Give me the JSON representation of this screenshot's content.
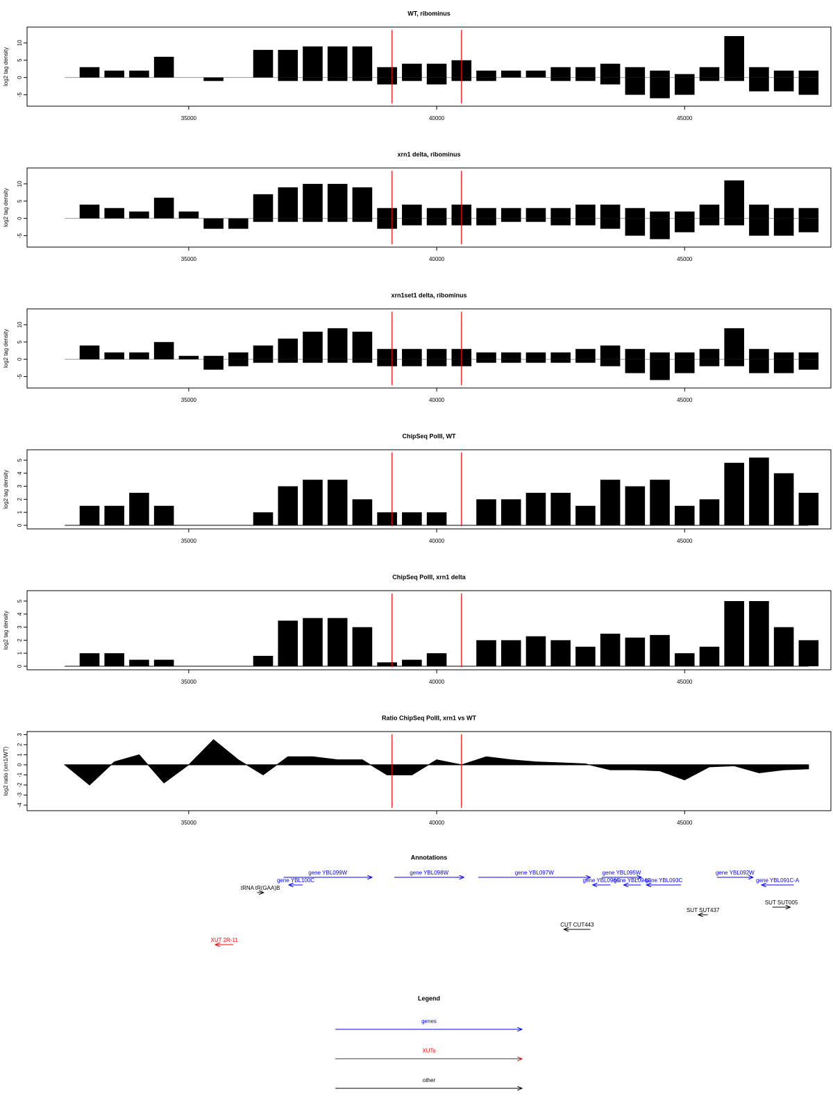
{
  "chart_data": [
    {
      "type": "bar",
      "title": "WT, ribominus",
      "ylabel": "log2 tag density",
      "xlim": [
        31740,
        47950
      ],
      "xticks": [
        35000,
        40000,
        45000
      ],
      "ylim": [
        -8.3,
        14.6
      ],
      "yticks": [
        -5,
        0,
        5,
        10
      ],
      "color": "#000000",
      "baseline_color": "#999999",
      "markers": [
        39100,
        40500
      ],
      "marker_color": "#ff0000",
      "x": [
        32500,
        33000,
        33500,
        34000,
        34500,
        35000,
        35500,
        36000,
        36500,
        37000,
        37500,
        38000,
        38500,
        39000,
        39500,
        40000,
        40500,
        41000,
        41500,
        42000,
        42500,
        43000,
        43500,
        44000,
        44500,
        45000,
        45500,
        46000,
        46500,
        47000,
        47500
      ],
      "values": [
        0,
        3,
        2,
        2,
        6,
        0,
        0,
        0,
        8,
        8,
        9,
        9,
        9,
        3,
        4,
        4,
        5,
        2,
        2,
        2,
        3,
        3,
        4,
        3,
        2,
        1,
        3,
        12,
        3,
        2,
        2
      ],
      "values_minus": [
        0,
        0,
        0,
        0,
        0,
        0,
        -1,
        0,
        0,
        -1,
        -1,
        -1,
        -1,
        -2,
        -1,
        -2,
        -1,
        -1,
        0,
        0,
        -1,
        -1,
        -2,
        -5,
        -6,
        -5,
        -1,
        -1,
        -4,
        -4,
        -5
      ]
    },
    {
      "type": "bar",
      "title": "xrn1 delta, ribominus",
      "ylabel": "log2 tag density",
      "xlim": [
        31740,
        47950
      ],
      "xticks": [
        35000,
        40000,
        45000
      ],
      "ylim": [
        -8.3,
        14.6
      ],
      "yticks": [
        -5,
        0,
        5,
        10
      ],
      "color": "#000000",
      "baseline_color": "#999999",
      "markers": [
        39100,
        40500
      ],
      "marker_color": "#ff0000",
      "x": [
        32500,
        33000,
        33500,
        34000,
        34500,
        35000,
        35500,
        36000,
        36500,
        37000,
        37500,
        38000,
        38500,
        39000,
        39500,
        40000,
        40500,
        41000,
        41500,
        42000,
        42500,
        43000,
        43500,
        44000,
        44500,
        45000,
        45500,
        46000,
        46500,
        47000,
        47500
      ],
      "values": [
        0,
        4,
        3,
        2,
        6,
        2,
        0,
        0,
        7,
        9,
        10,
        10,
        9,
        3,
        4,
        3,
        4,
        3,
        3,
        3,
        3,
        4,
        4,
        3,
        2,
        2,
        4,
        11,
        4,
        3,
        3
      ],
      "values_minus": [
        0,
        0,
        0,
        0,
        0,
        0,
        -3,
        -3,
        -1,
        -1,
        -1,
        -1,
        -1,
        -3,
        -2,
        -2,
        -2,
        -2,
        -1,
        -1,
        -2,
        -2,
        -3,
        -5,
        -6,
        -4,
        -2,
        -2,
        -5,
        -5,
        -4
      ]
    },
    {
      "type": "bar",
      "title": "xrn1set1 delta, ribominus",
      "ylabel": "log2 tag density",
      "xlim": [
        31740,
        47950
      ],
      "xticks": [
        35000,
        40000,
        45000
      ],
      "ylim": [
        -8.3,
        14.6
      ],
      "yticks": [
        -5,
        0,
        5,
        10
      ],
      "color": "#000000",
      "baseline_color": "#999999",
      "markers": [
        39100,
        40500
      ],
      "marker_color": "#ff0000",
      "x": [
        32500,
        33000,
        33500,
        34000,
        34500,
        35000,
        35500,
        36000,
        36500,
        37000,
        37500,
        38000,
        38500,
        39000,
        39500,
        40000,
        40500,
        41000,
        41500,
        42000,
        42500,
        43000,
        43500,
        44000,
        44500,
        45000,
        45500,
        46000,
        46500,
        47000,
        47500
      ],
      "values": [
        0,
        4,
        2,
        2,
        5,
        1,
        1,
        2,
        4,
        6,
        8,
        9,
        8,
        3,
        3,
        3,
        3,
        2,
        2,
        2,
        2,
        3,
        4,
        3,
        2,
        2,
        3,
        9,
        3,
        2,
        2
      ],
      "values_minus": [
        0,
        0,
        0,
        0,
        0,
        0,
        -3,
        -2,
        -1,
        -1,
        -1,
        -1,
        -1,
        -2,
        -2,
        -2,
        -2,
        -1,
        -1,
        -1,
        -1,
        -1,
        -2,
        -4,
        -6,
        -4,
        -2,
        -2,
        -4,
        -4,
        -3
      ]
    },
    {
      "type": "bar",
      "title": "ChipSeq PolII, WT",
      "ylabel": "log2 tag density",
      "xlim": [
        31740,
        47950
      ],
      "xticks": [
        35000,
        40000,
        45000
      ],
      "ylim": [
        -0.27,
        5.8
      ],
      "yticks": [
        0,
        1,
        2,
        3,
        4,
        5
      ],
      "color": "#000000",
      "baseline_color": "#000000",
      "markers": [
        39100,
        40500
      ],
      "marker_color": "#ff0000",
      "x": [
        32500,
        33000,
        33500,
        34000,
        34500,
        35000,
        35500,
        36000,
        36500,
        37000,
        37500,
        38000,
        38500,
        39000,
        39500,
        40000,
        40500,
        41000,
        41500,
        42000,
        42500,
        43000,
        43500,
        44000,
        44500,
        45000,
        45500,
        46000,
        46500,
        47000,
        47500
      ],
      "values": [
        0,
        1.5,
        1.5,
        2.5,
        1.5,
        0,
        0,
        0,
        1,
        3,
        3.5,
        3.5,
        2,
        1,
        1,
        1,
        0,
        2,
        2,
        2.5,
        2.5,
        1.5,
        3.5,
        3,
        3.5,
        1.5,
        2,
        4.8,
        5.2,
        4,
        2.5
      ]
    },
    {
      "type": "bar",
      "title": "ChipSeq PolII, xrn1 delta",
      "ylabel": "log2 tag density",
      "xlim": [
        31740,
        47950
      ],
      "xticks": [
        35000,
        40000,
        45000
      ],
      "ylim": [
        -0.27,
        5.8
      ],
      "yticks": [
        0,
        1,
        2,
        3,
        4,
        5
      ],
      "color": "#000000",
      "baseline_color": "#000000",
      "markers": [
        39100,
        40500
      ],
      "marker_color": "#ff0000",
      "x": [
        32500,
        33000,
        33500,
        34000,
        34500,
        35000,
        35500,
        36000,
        36500,
        37000,
        37500,
        38000,
        38500,
        39000,
        39500,
        40000,
        40500,
        41000,
        41500,
        42000,
        42500,
        43000,
        43500,
        44000,
        44500,
        45000,
        45500,
        46000,
        46500,
        47000,
        47500
      ],
      "values": [
        0,
        1,
        1,
        0.5,
        0.5,
        0,
        0,
        0,
        0.8,
        3.5,
        3.7,
        3.7,
        3,
        0.3,
        0.5,
        1,
        0,
        2,
        2,
        2.3,
        2,
        1.5,
        2.5,
        2.2,
        2.4,
        1,
        1.5,
        5,
        5,
        3,
        2
      ]
    },
    {
      "type": "area",
      "title": "Ratio ChipSeq PolII, xrn1 vs WT",
      "ylabel": "log2 ratio (xrn1/WT)",
      "xlim": [
        31740,
        47950
      ],
      "xticks": [
        35000,
        40000,
        45000
      ],
      "ylim": [
        -4.55,
        3.3
      ],
      "yticks": [
        -4,
        -3,
        -2,
        -1,
        0,
        1,
        2,
        3
      ],
      "color": "#000000",
      "baseline_color": "#000000",
      "markers": [
        39100,
        40500
      ],
      "marker_color": "#ff0000",
      "x": [
        32500,
        33000,
        33500,
        34000,
        34500,
        35000,
        35500,
        36000,
        36500,
        37000,
        37500,
        38000,
        38500,
        39000,
        39500,
        40000,
        40500,
        41000,
        41500,
        42000,
        42500,
        43000,
        43500,
        44000,
        44500,
        45000,
        45500,
        46000,
        46500,
        47000,
        47500
      ],
      "values": [
        0,
        -2,
        0.3,
        1,
        -1.8,
        0,
        2.5,
        0.5,
        -1,
        0.8,
        0.8,
        0.5,
        0.5,
        -1,
        -1,
        0.5,
        0,
        0.8,
        0.5,
        0.3,
        0.2,
        0.1,
        -0.5,
        -0.5,
        -0.6,
        -1.5,
        -0.2,
        -0.1,
        -0.8,
        -0.5,
        -0.4
      ]
    }
  ],
  "annotations": {
    "title": "Annotations",
    "features": [
      {
        "label": "gene YBL099W",
        "start": 36913,
        "end": 38696,
        "strand": "+",
        "color": "#0000ff"
      },
      {
        "label": "gene YBL100C",
        "start": 37015,
        "end": 37300,
        "strand": "-",
        "color": "#0000ff"
      },
      {
        "label": "tRNA tR(GAA)B",
        "start": 36380,
        "end": 36510,
        "strand": "+",
        "color": "#000000"
      },
      {
        "label": "gene YBL098W",
        "start": 39145,
        "end": 40550,
        "strand": "+",
        "color": "#0000ff"
      },
      {
        "label": "gene YBL097W",
        "start": 40840,
        "end": 43100,
        "strand": "+",
        "color": "#0000ff"
      },
      {
        "label": "gene YBL095W",
        "start": 43330,
        "end": 44130,
        "strand": "+",
        "color": "#0000ff"
      },
      {
        "label": "gene YBL096C",
        "start": 43145,
        "end": 43505,
        "strand": "-",
        "color": "#0000ff"
      },
      {
        "label": "gene YBL094C",
        "start": 43770,
        "end": 44120,
        "strand": "-",
        "color": "#0000ff"
      },
      {
        "label": "gene YBL093C",
        "start": 44230,
        "end": 44930,
        "strand": "-",
        "color": "#0000ff"
      },
      {
        "label": "gene YBL092W",
        "start": 45650,
        "end": 46380,
        "strand": "+",
        "color": "#0000ff"
      },
      {
        "label": "gene YBL091C-A",
        "start": 46550,
        "end": 47200,
        "strand": "-",
        "color": "#0000ff"
      },
      {
        "label": "SUT SUT437",
        "start": 45275,
        "end": 45465,
        "strand": "-",
        "color": "#000000"
      },
      {
        "label": "SUT SUT005",
        "start": 46770,
        "end": 47130,
        "strand": "+",
        "color": "#000000"
      },
      {
        "label": "CUT CUT443",
        "start": 42565,
        "end": 43100,
        "strand": "-",
        "color": "#000000"
      },
      {
        "label": "XUT 2R-11",
        "start": 35535,
        "end": 35900,
        "strand": "-",
        "color": "#ff0000"
      }
    ]
  },
  "legend": {
    "title": "Legend",
    "entries": [
      {
        "label": "genes",
        "color": "#0000ff"
      },
      {
        "label": "XUTs",
        "color": "#ff0000"
      },
      {
        "label": "other",
        "color": "#000000"
      }
    ]
  }
}
